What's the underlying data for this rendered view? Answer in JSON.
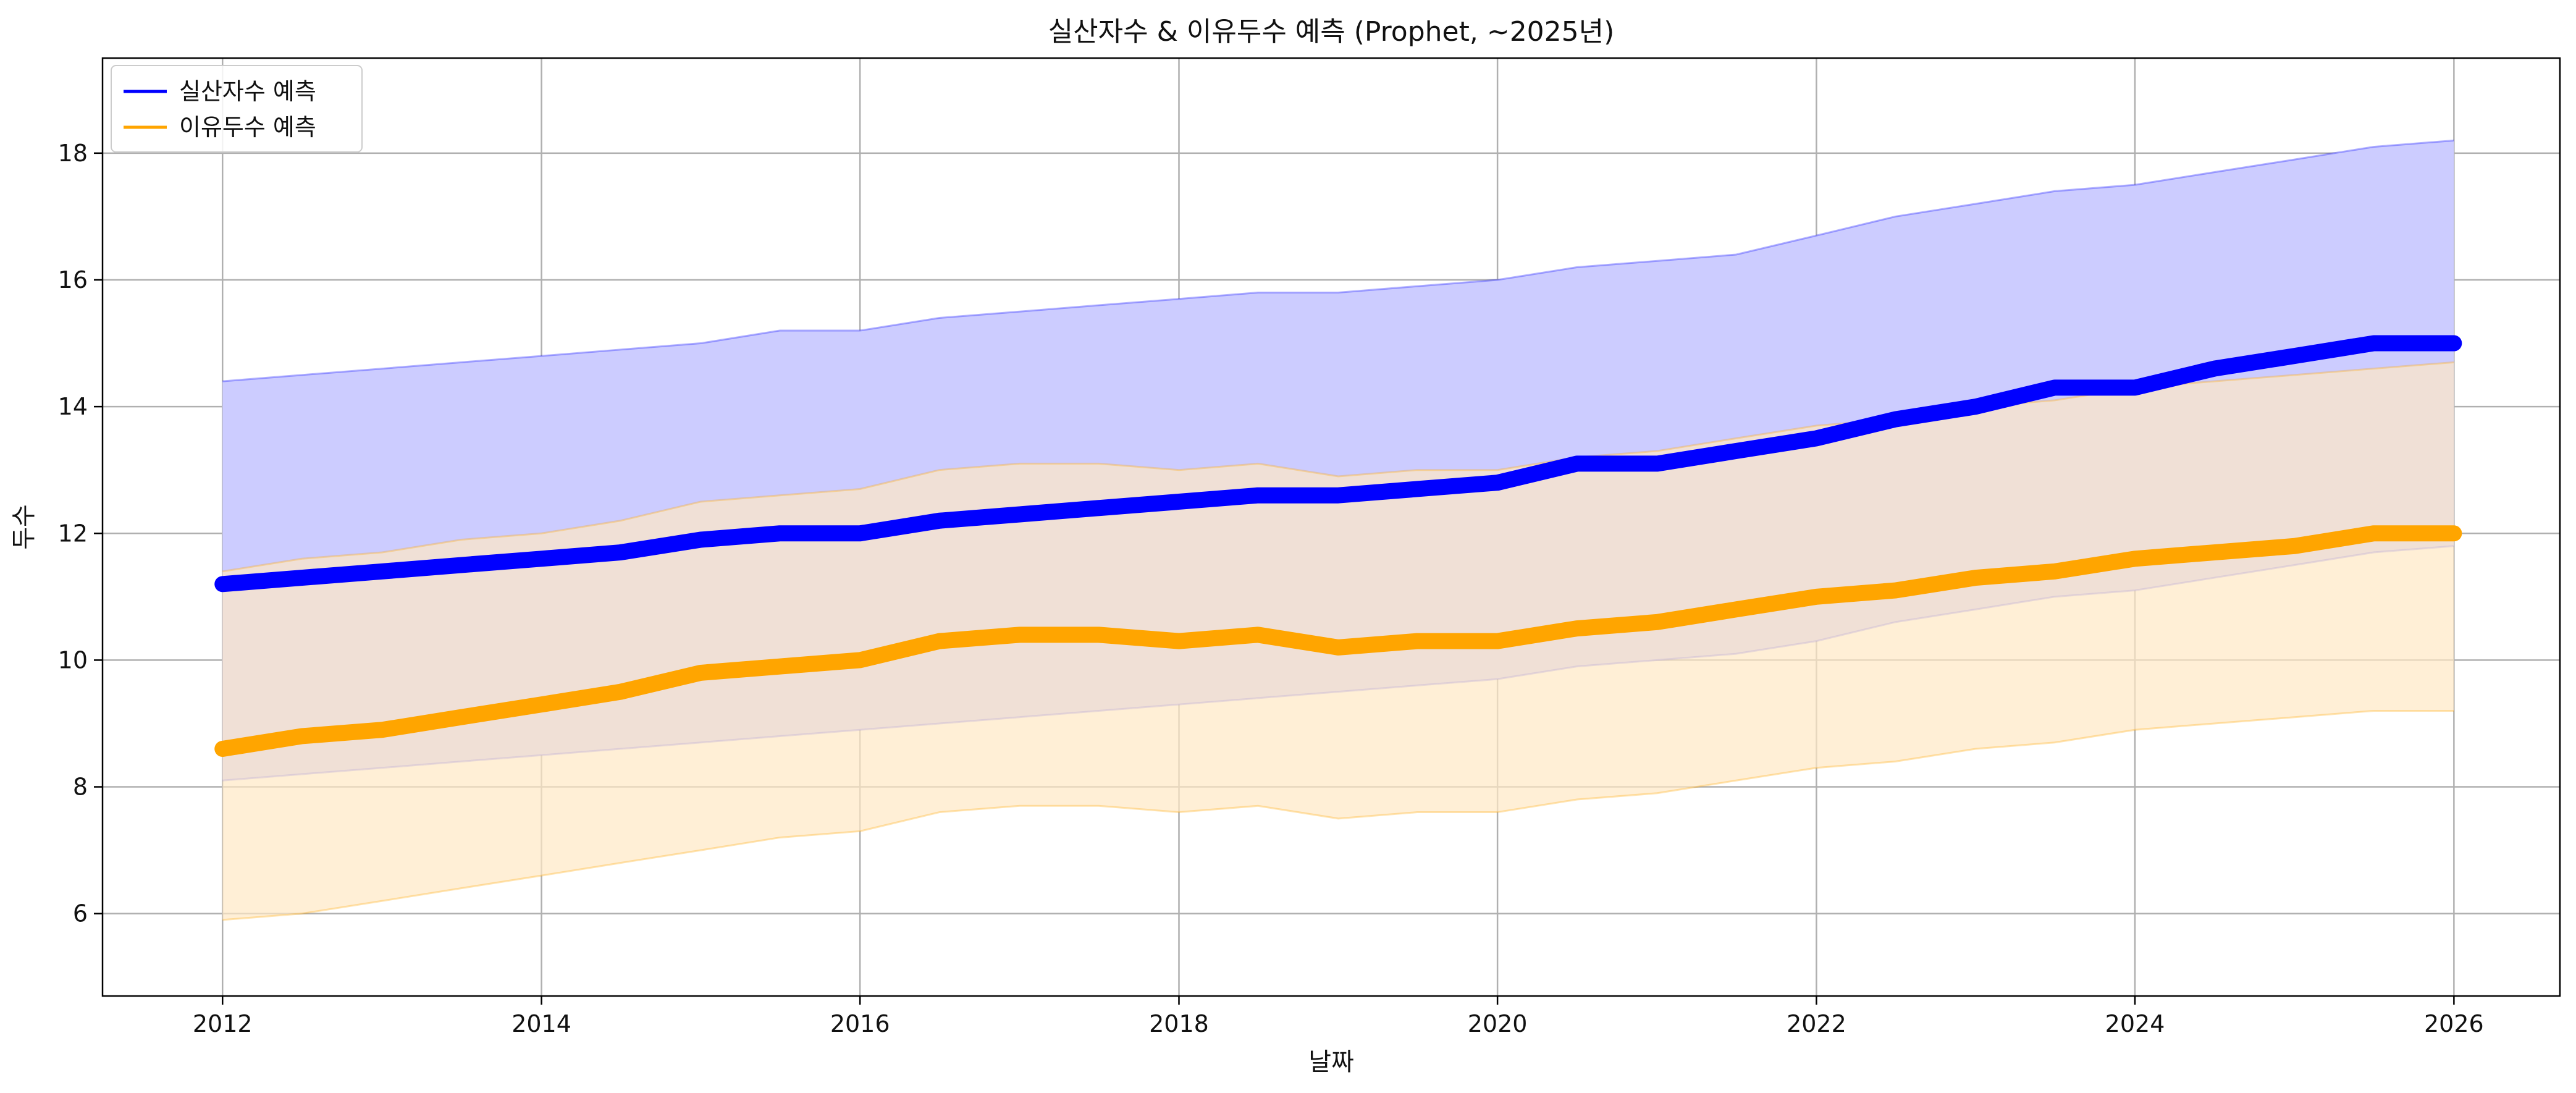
{
  "chart_data": {
    "type": "line",
    "title": "실산자수 & 이유두수 예측 (Prophet, ~2025년)",
    "xlabel": "날짜",
    "ylabel": "두수",
    "xlim": [
      "2011-04-01",
      "2026-09-01"
    ],
    "ylim": [
      4.7,
      19.5
    ],
    "xticks": [
      "2012",
      "2014",
      "2016",
      "2018",
      "2020",
      "2022",
      "2024",
      "2026"
    ],
    "yticks": [
      6,
      8,
      10,
      12,
      14,
      16,
      18
    ],
    "grid": true,
    "legend_position": "top-left",
    "series": [
      {
        "name": "실산자수 예측",
        "color": "#0000ff",
        "band_color": "#ccccff",
        "data": [
          {
            "x": "2012-01-01",
            "y": 11.2,
            "lower": 8.1,
            "upper": 14.4
          },
          {
            "x": "2012-07-01",
            "y": 11.3,
            "lower": 8.2,
            "upper": 14.5
          },
          {
            "x": "2013-01-01",
            "y": 11.4,
            "lower": 8.3,
            "upper": 14.6
          },
          {
            "x": "2013-07-01",
            "y": 11.5,
            "lower": 8.4,
            "upper": 14.7
          },
          {
            "x": "2014-01-01",
            "y": 11.6,
            "lower": 8.5,
            "upper": 14.8
          },
          {
            "x": "2014-07-01",
            "y": 11.7,
            "lower": 8.6,
            "upper": 14.9
          },
          {
            "x": "2015-01-01",
            "y": 11.9,
            "lower": 8.7,
            "upper": 15.0
          },
          {
            "x": "2015-07-01",
            "y": 12.0,
            "lower": 8.8,
            "upper": 15.2
          },
          {
            "x": "2016-01-01",
            "y": 12.0,
            "lower": 8.9,
            "upper": 15.2
          },
          {
            "x": "2016-07-01",
            "y": 12.2,
            "lower": 9.0,
            "upper": 15.4
          },
          {
            "x": "2017-01-01",
            "y": 12.3,
            "lower": 9.1,
            "upper": 15.5
          },
          {
            "x": "2017-07-01",
            "y": 12.4,
            "lower": 9.2,
            "upper": 15.6
          },
          {
            "x": "2018-01-01",
            "y": 12.5,
            "lower": 9.3,
            "upper": 15.7
          },
          {
            "x": "2018-07-01",
            "y": 12.6,
            "lower": 9.4,
            "upper": 15.8
          },
          {
            "x": "2019-01-01",
            "y": 12.6,
            "lower": 9.5,
            "upper": 15.8
          },
          {
            "x": "2019-07-01",
            "y": 12.7,
            "lower": 9.6,
            "upper": 15.9
          },
          {
            "x": "2020-01-01",
            "y": 12.8,
            "lower": 9.7,
            "upper": 16.0
          },
          {
            "x": "2020-07-01",
            "y": 13.1,
            "lower": 9.9,
            "upper": 16.2
          },
          {
            "x": "2021-01-01",
            "y": 13.1,
            "lower": 10.0,
            "upper": 16.3
          },
          {
            "x": "2021-07-01",
            "y": 13.3,
            "lower": 10.1,
            "upper": 16.4
          },
          {
            "x": "2022-01-01",
            "y": 13.5,
            "lower": 10.3,
            "upper": 16.7
          },
          {
            "x": "2022-07-01",
            "y": 13.8,
            "lower": 10.6,
            "upper": 17.0
          },
          {
            "x": "2023-01-01",
            "y": 14.0,
            "lower": 10.8,
            "upper": 17.2
          },
          {
            "x": "2023-07-01",
            "y": 14.3,
            "lower": 11.0,
            "upper": 17.4
          },
          {
            "x": "2024-01-01",
            "y": 14.3,
            "lower": 11.1,
            "upper": 17.5
          },
          {
            "x": "2024-07-01",
            "y": 14.6,
            "lower": 11.3,
            "upper": 17.7
          },
          {
            "x": "2025-01-01",
            "y": 14.8,
            "lower": 11.5,
            "upper": 17.9
          },
          {
            "x": "2025-07-01",
            "y": 15.0,
            "lower": 11.7,
            "upper": 18.1
          },
          {
            "x": "2026-01-01",
            "y": 15.0,
            "lower": 11.8,
            "upper": 18.2
          }
        ]
      },
      {
        "name": "이유두수 예측",
        "color": "#ffa500",
        "band_color": "#ffe8c4",
        "data": [
          {
            "x": "2012-01-01",
            "y": 8.6,
            "lower": 5.9,
            "upper": 11.4
          },
          {
            "x": "2012-07-01",
            "y": 8.8,
            "lower": 6.0,
            "upper": 11.6
          },
          {
            "x": "2013-01-01",
            "y": 8.9,
            "lower": 6.2,
            "upper": 11.7
          },
          {
            "x": "2013-07-01",
            "y": 9.1,
            "lower": 6.4,
            "upper": 11.9
          },
          {
            "x": "2014-01-01",
            "y": 9.3,
            "lower": 6.6,
            "upper": 12.0
          },
          {
            "x": "2014-07-01",
            "y": 9.5,
            "lower": 6.8,
            "upper": 12.2
          },
          {
            "x": "2015-01-01",
            "y": 9.8,
            "lower": 7.0,
            "upper": 12.5
          },
          {
            "x": "2015-07-01",
            "y": 9.9,
            "lower": 7.2,
            "upper": 12.6
          },
          {
            "x": "2016-01-01",
            "y": 10.0,
            "lower": 7.3,
            "upper": 12.7
          },
          {
            "x": "2016-07-01",
            "y": 10.3,
            "lower": 7.6,
            "upper": 13.0
          },
          {
            "x": "2017-01-01",
            "y": 10.4,
            "lower": 7.7,
            "upper": 13.1
          },
          {
            "x": "2017-07-01",
            "y": 10.4,
            "lower": 7.7,
            "upper": 13.1
          },
          {
            "x": "2018-01-01",
            "y": 10.3,
            "lower": 7.6,
            "upper": 13.0
          },
          {
            "x": "2018-07-01",
            "y": 10.4,
            "lower": 7.7,
            "upper": 13.1
          },
          {
            "x": "2019-01-01",
            "y": 10.2,
            "lower": 7.5,
            "upper": 12.9
          },
          {
            "x": "2019-07-01",
            "y": 10.3,
            "lower": 7.6,
            "upper": 13.0
          },
          {
            "x": "2020-01-01",
            "y": 10.3,
            "lower": 7.6,
            "upper": 13.0
          },
          {
            "x": "2020-07-01",
            "y": 10.5,
            "lower": 7.8,
            "upper": 13.2
          },
          {
            "x": "2021-01-01",
            "y": 10.6,
            "lower": 7.9,
            "upper": 13.3
          },
          {
            "x": "2021-07-01",
            "y": 10.8,
            "lower": 8.1,
            "upper": 13.5
          },
          {
            "x": "2022-01-01",
            "y": 11.0,
            "lower": 8.3,
            "upper": 13.7
          },
          {
            "x": "2022-07-01",
            "y": 11.1,
            "lower": 8.4,
            "upper": 13.8
          },
          {
            "x": "2023-01-01",
            "y": 11.3,
            "lower": 8.6,
            "upper": 14.0
          },
          {
            "x": "2023-07-01",
            "y": 11.4,
            "lower": 8.7,
            "upper": 14.1
          },
          {
            "x": "2024-01-01",
            "y": 11.6,
            "lower": 8.9,
            "upper": 14.3
          },
          {
            "x": "2024-07-01",
            "y": 11.7,
            "lower": 9.0,
            "upper": 14.4
          },
          {
            "x": "2025-01-01",
            "y": 11.8,
            "lower": 9.1,
            "upper": 14.5
          },
          {
            "x": "2025-07-01",
            "y": 12.0,
            "lower": 9.2,
            "upper": 14.6
          },
          {
            "x": "2026-01-01",
            "y": 12.0,
            "lower": 9.2,
            "upper": 14.7
          }
        ]
      }
    ]
  }
}
